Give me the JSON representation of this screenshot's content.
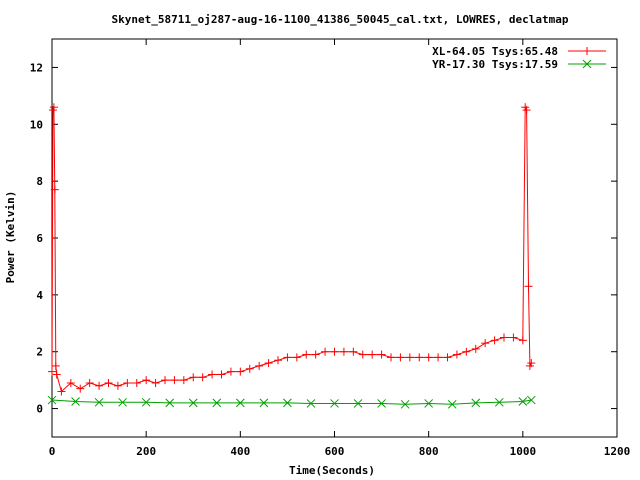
{
  "chart_data": {
    "type": "line",
    "title": "Skynet_58711_oj287-aug-16-1100_41386_50045_cal.txt, LOWRES, declatmap",
    "xlabel": "Time(Seconds)",
    "ylabel": "Power (Kelvin)",
    "xlim": [
      0,
      1200
    ],
    "ylim": [
      -1,
      13
    ],
    "xticks": [
      0,
      200,
      400,
      600,
      800,
      1000,
      1200
    ],
    "yticks": [
      0,
      2,
      4,
      6,
      8,
      10,
      12
    ],
    "grid": false,
    "legend_position": "top-right",
    "series": [
      {
        "name": "XL-64.05 Tsys:65.48",
        "color": "#ff0000",
        "marker": "plus",
        "x": [
          0,
          2,
          4,
          6,
          8,
          10,
          20,
          40,
          60,
          80,
          100,
          120,
          140,
          160,
          180,
          200,
          220,
          240,
          260,
          280,
          300,
          320,
          340,
          360,
          380,
          400,
          420,
          440,
          460,
          480,
          500,
          520,
          540,
          560,
          580,
          600,
          620,
          640,
          660,
          680,
          700,
          720,
          740,
          760,
          780,
          800,
          820,
          840,
          860,
          880,
          900,
          920,
          940,
          960,
          980,
          1000,
          1005,
          1008,
          1012,
          1015,
          1018
        ],
        "y": [
          1.3,
          10.5,
          10.6,
          7.7,
          1.5,
          1.2,
          0.6,
          0.9,
          0.7,
          0.9,
          0.8,
          0.9,
          0.8,
          0.9,
          0.9,
          1.0,
          0.9,
          1.0,
          1.0,
          1.0,
          1.1,
          1.1,
          1.2,
          1.2,
          1.3,
          1.3,
          1.4,
          1.5,
          1.6,
          1.7,
          1.8,
          1.8,
          1.9,
          1.9,
          2.0,
          2.0,
          2.0,
          2.0,
          1.9,
          1.9,
          1.9,
          1.8,
          1.8,
          1.8,
          1.8,
          1.8,
          1.8,
          1.8,
          1.9,
          2.0,
          2.1,
          2.3,
          2.4,
          2.5,
          2.5,
          2.4,
          10.6,
          10.5,
          4.3,
          1.5,
          1.6
        ]
      },
      {
        "name": "YR-17.30 Tsys:17.59",
        "color": "#00a000",
        "marker": "cross",
        "x": [
          0,
          50,
          100,
          150,
          200,
          250,
          300,
          350,
          400,
          450,
          500,
          550,
          600,
          650,
          700,
          750,
          800,
          850,
          900,
          950,
          1000,
          1018
        ],
        "y": [
          0.3,
          0.25,
          0.22,
          0.22,
          0.22,
          0.2,
          0.2,
          0.2,
          0.2,
          0.2,
          0.2,
          0.18,
          0.18,
          0.18,
          0.18,
          0.15,
          0.18,
          0.15,
          0.2,
          0.22,
          0.25,
          0.3
        ]
      }
    ]
  }
}
